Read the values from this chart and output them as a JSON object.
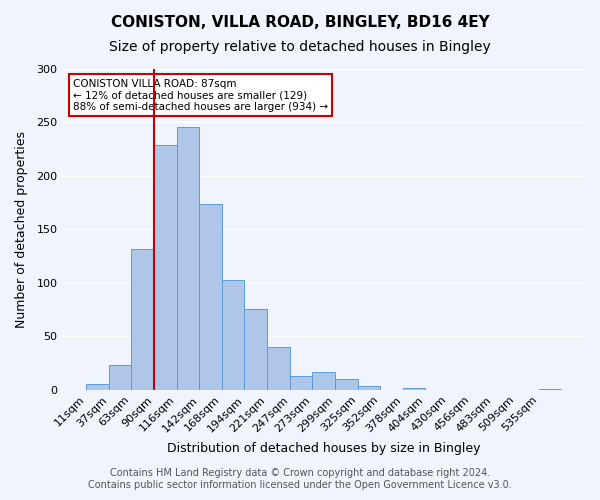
{
  "title": "CONISTON, VILLA ROAD, BINGLEY, BD16 4EY",
  "subtitle": "Size of property relative to detached houses in Bingley",
  "xlabel": "Distribution of detached houses by size in Bingley",
  "ylabel": "Number of detached properties",
  "bin_labels": [
    "11sqm",
    "37sqm",
    "63sqm",
    "90sqm",
    "116sqm",
    "142sqm",
    "168sqm",
    "194sqm",
    "221sqm",
    "247sqm",
    "273sqm",
    "299sqm",
    "325sqm",
    "352sqm",
    "378sqm",
    "404sqm",
    "430sqm",
    "456sqm",
    "483sqm",
    "509sqm",
    "535sqm"
  ],
  "bar_heights": [
    5,
    23,
    132,
    229,
    246,
    174,
    103,
    76,
    40,
    13,
    17,
    10,
    4,
    0,
    2,
    0,
    0,
    0,
    0,
    0,
    1
  ],
  "bar_color": "#AEC6E8",
  "bar_edge_color": "#5B9BD5",
  "background_color": "#F0F4FC",
  "grid_color": "#FFFFFF",
  "property_line_color": "#CC0000",
  "annotation_title": "CONISTON VILLA ROAD: 87sqm",
  "annotation_line1": "← 12% of detached houses are smaller (129)",
  "annotation_line2": "88% of semi-detached houses are larger (934) →",
  "annotation_box_color": "#FFFFFF",
  "annotation_box_edge_color": "#CC0000",
  "ylim": [
    0,
    300
  ],
  "yticks": [
    0,
    50,
    100,
    150,
    200,
    250,
    300
  ],
  "footer_line1": "Contains HM Land Registry data © Crown copyright and database right 2024.",
  "footer_line2": "Contains public sector information licensed under the Open Government Licence v3.0.",
  "title_fontsize": 11,
  "subtitle_fontsize": 10,
  "xlabel_fontsize": 9,
  "ylabel_fontsize": 9,
  "tick_fontsize": 8,
  "footer_fontsize": 7
}
